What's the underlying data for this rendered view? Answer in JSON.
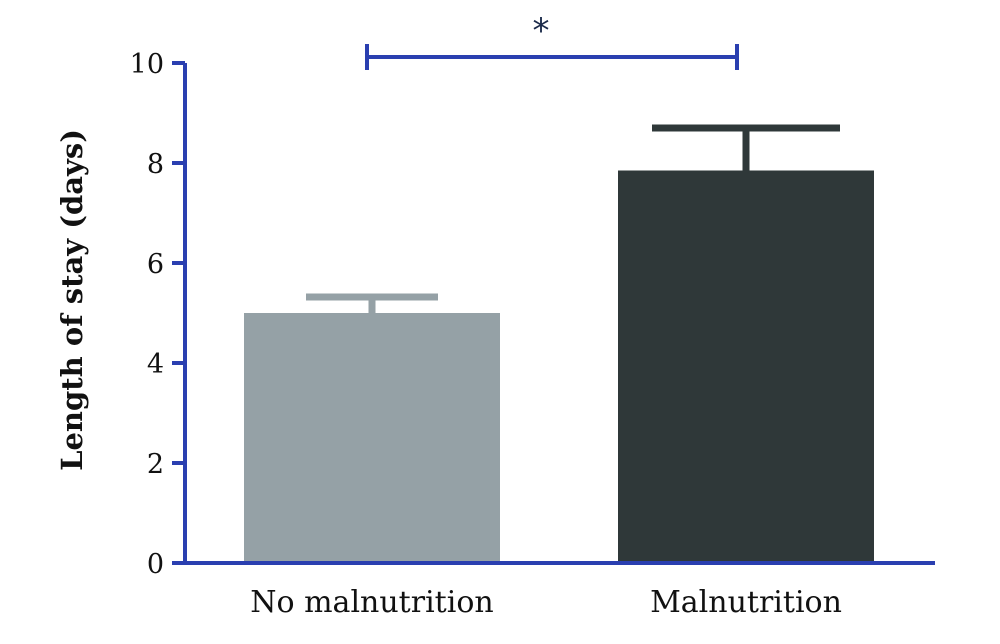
{
  "chart_data": {
    "type": "bar",
    "title": "",
    "xlabel": "",
    "ylabel": "Length of stay (days)",
    "ylim": [
      0,
      10
    ],
    "yticks": [
      0,
      2,
      4,
      6,
      8,
      10
    ],
    "grid": false,
    "legend": "none",
    "categories": [
      "No malnutrition",
      "Malnutrition"
    ],
    "values": [
      5.0,
      7.85
    ],
    "error_upper": [
      0.32,
      0.85
    ],
    "bar_colors": [
      "#95a1a6",
      "#2f3839"
    ],
    "axis_color": "#2a3fb0",
    "significance": {
      "label": "*",
      "from_category": 0,
      "to_category": 1,
      "y": 10.15,
      "color": "#2a3fb0"
    }
  }
}
